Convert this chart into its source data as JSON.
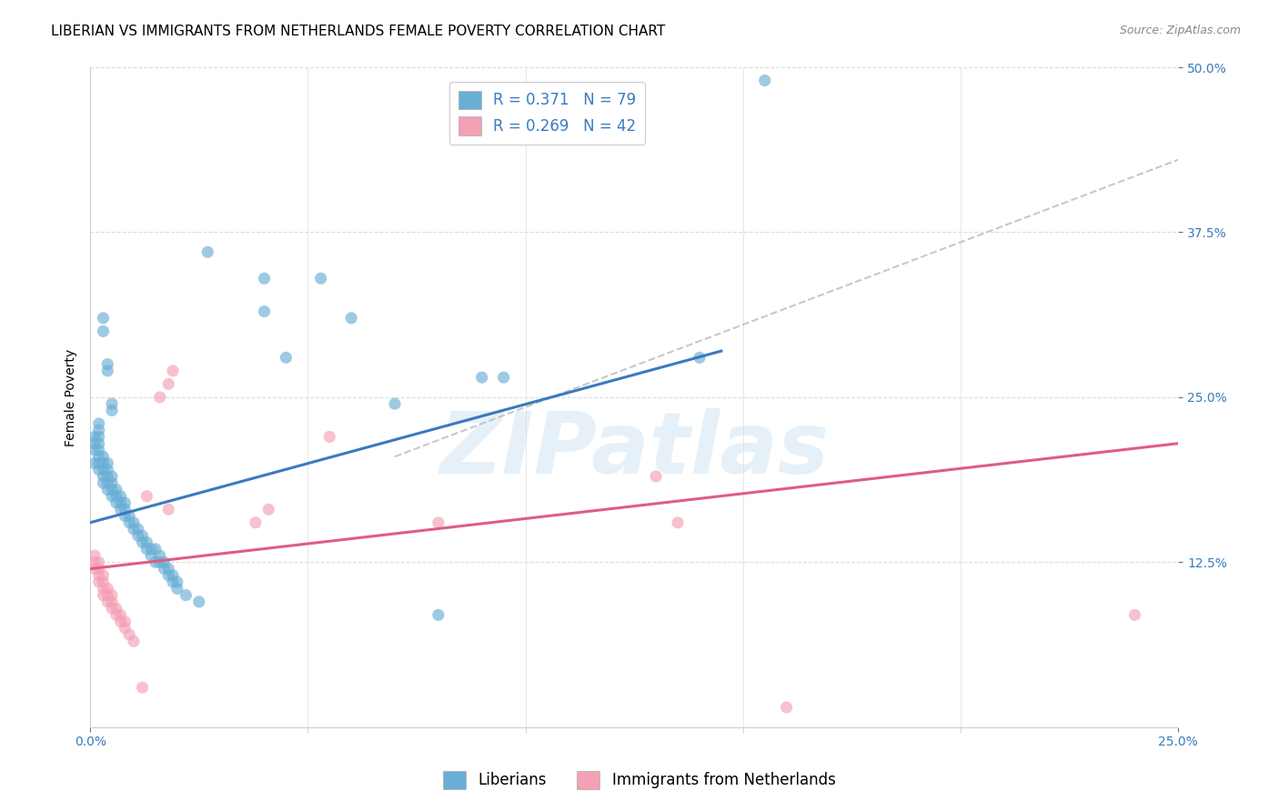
{
  "title": "LIBERIAN VS IMMIGRANTS FROM NETHERLANDS FEMALE POVERTY CORRELATION CHART",
  "source": "Source: ZipAtlas.com",
  "ylabel_label": "Female Poverty",
  "legend_1_r": "0.371",
  "legend_1_n": "79",
  "legend_2_r": "0.269",
  "legend_2_n": "42",
  "legend_label_1": "Liberians",
  "legend_label_2": "Immigrants from Netherlands",
  "color_blue": "#6aaed6",
  "color_pink": "#f4a0b5",
  "color_blue_line": "#3a7abf",
  "color_pink_line": "#e05c80",
  "color_gray_dashed": "#bbbbbb",
  "xlim": [
    0.0,
    0.25
  ],
  "ylim": [
    0.0,
    0.5
  ],
  "blue_line": [
    [
      0.0,
      0.155
    ],
    [
      0.145,
      0.285
    ]
  ],
  "pink_line": [
    [
      0.0,
      0.12
    ],
    [
      0.25,
      0.215
    ]
  ],
  "gray_dash_line": [
    [
      0.07,
      0.205
    ],
    [
      0.25,
      0.43
    ]
  ],
  "blue_points": [
    [
      0.001,
      0.2
    ],
    [
      0.001,
      0.21
    ],
    [
      0.001,
      0.215
    ],
    [
      0.001,
      0.22
    ],
    [
      0.002,
      0.195
    ],
    [
      0.002,
      0.2
    ],
    [
      0.002,
      0.205
    ],
    [
      0.002,
      0.21
    ],
    [
      0.002,
      0.215
    ],
    [
      0.002,
      0.22
    ],
    [
      0.002,
      0.225
    ],
    [
      0.002,
      0.23
    ],
    [
      0.003,
      0.185
    ],
    [
      0.003,
      0.19
    ],
    [
      0.003,
      0.195
    ],
    [
      0.003,
      0.2
    ],
    [
      0.003,
      0.205
    ],
    [
      0.003,
      0.3
    ],
    [
      0.003,
      0.31
    ],
    [
      0.004,
      0.18
    ],
    [
      0.004,
      0.185
    ],
    [
      0.004,
      0.19
    ],
    [
      0.004,
      0.195
    ],
    [
      0.004,
      0.2
    ],
    [
      0.004,
      0.27
    ],
    [
      0.004,
      0.275
    ],
    [
      0.005,
      0.175
    ],
    [
      0.005,
      0.18
    ],
    [
      0.005,
      0.185
    ],
    [
      0.005,
      0.19
    ],
    [
      0.005,
      0.24
    ],
    [
      0.005,
      0.245
    ],
    [
      0.006,
      0.17
    ],
    [
      0.006,
      0.175
    ],
    [
      0.006,
      0.18
    ],
    [
      0.007,
      0.165
    ],
    [
      0.007,
      0.17
    ],
    [
      0.007,
      0.175
    ],
    [
      0.008,
      0.16
    ],
    [
      0.008,
      0.165
    ],
    [
      0.008,
      0.17
    ],
    [
      0.009,
      0.155
    ],
    [
      0.009,
      0.16
    ],
    [
      0.01,
      0.15
    ],
    [
      0.01,
      0.155
    ],
    [
      0.011,
      0.145
    ],
    [
      0.011,
      0.15
    ],
    [
      0.012,
      0.14
    ],
    [
      0.012,
      0.145
    ],
    [
      0.013,
      0.135
    ],
    [
      0.013,
      0.14
    ],
    [
      0.014,
      0.13
    ],
    [
      0.014,
      0.135
    ],
    [
      0.015,
      0.125
    ],
    [
      0.015,
      0.135
    ],
    [
      0.016,
      0.125
    ],
    [
      0.016,
      0.13
    ],
    [
      0.017,
      0.12
    ],
    [
      0.017,
      0.125
    ],
    [
      0.018,
      0.115
    ],
    [
      0.018,
      0.12
    ],
    [
      0.019,
      0.11
    ],
    [
      0.019,
      0.115
    ],
    [
      0.02,
      0.105
    ],
    [
      0.02,
      0.11
    ],
    [
      0.022,
      0.1
    ],
    [
      0.025,
      0.095
    ],
    [
      0.027,
      0.36
    ],
    [
      0.04,
      0.315
    ],
    [
      0.04,
      0.34
    ],
    [
      0.045,
      0.28
    ],
    [
      0.053,
      0.34
    ],
    [
      0.06,
      0.31
    ],
    [
      0.07,
      0.245
    ],
    [
      0.08,
      0.085
    ],
    [
      0.09,
      0.265
    ],
    [
      0.095,
      0.265
    ],
    [
      0.14,
      0.28
    ],
    [
      0.155,
      0.49
    ]
  ],
  "pink_points": [
    [
      0.001,
      0.12
    ],
    [
      0.001,
      0.125
    ],
    [
      0.001,
      0.13
    ],
    [
      0.002,
      0.11
    ],
    [
      0.002,
      0.115
    ],
    [
      0.002,
      0.12
    ],
    [
      0.002,
      0.125
    ],
    [
      0.003,
      0.1
    ],
    [
      0.003,
      0.105
    ],
    [
      0.003,
      0.11
    ],
    [
      0.003,
      0.115
    ],
    [
      0.004,
      0.095
    ],
    [
      0.004,
      0.1
    ],
    [
      0.004,
      0.105
    ],
    [
      0.005,
      0.09
    ],
    [
      0.005,
      0.095
    ],
    [
      0.005,
      0.1
    ],
    [
      0.006,
      0.085
    ],
    [
      0.006,
      0.09
    ],
    [
      0.007,
      0.08
    ],
    [
      0.007,
      0.085
    ],
    [
      0.008,
      0.075
    ],
    [
      0.008,
      0.08
    ],
    [
      0.009,
      0.07
    ],
    [
      0.01,
      0.065
    ],
    [
      0.012,
      0.03
    ],
    [
      0.013,
      0.175
    ],
    [
      0.016,
      0.25
    ],
    [
      0.018,
      0.165
    ],
    [
      0.018,
      0.26
    ],
    [
      0.019,
      0.27
    ],
    [
      0.038,
      0.155
    ],
    [
      0.041,
      0.165
    ],
    [
      0.055,
      0.22
    ],
    [
      0.08,
      0.155
    ],
    [
      0.13,
      0.19
    ],
    [
      0.135,
      0.155
    ],
    [
      0.16,
      0.015
    ],
    [
      0.24,
      0.085
    ]
  ],
  "watermark_text": "ZIPatlas",
  "title_fontsize": 11,
  "axis_label_fontsize": 10,
  "tick_fontsize": 10,
  "legend_fontsize": 12,
  "source_fontsize": 9
}
